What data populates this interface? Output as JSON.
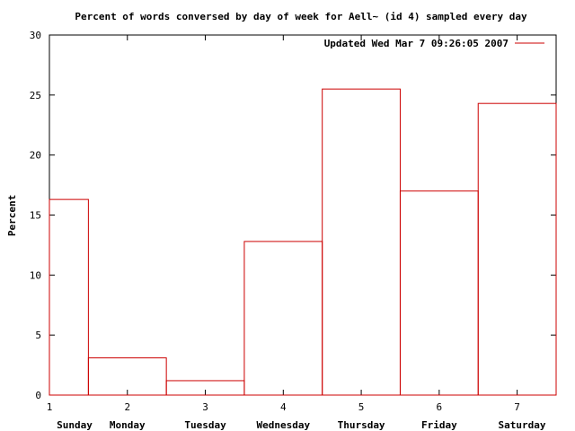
{
  "chart_data": {
    "type": "bar",
    "title": "Percent of words conversed by day of week for Aell~ (id 4) sampled every day",
    "xlabel": "",
    "ylabel": "Percent",
    "legend": {
      "label": "Updated Wed Mar  7 09:26:05 2007",
      "placement": "top-right"
    },
    "x_ticks": [
      "1",
      "2",
      "3",
      "4",
      "5",
      "6",
      "7"
    ],
    "categories": [
      "Sunday",
      "Monday",
      "Tuesday",
      "Wednesday",
      "Thursday",
      "Friday",
      "Saturday"
    ],
    "values": [
      16.3,
      3.1,
      1.2,
      12.8,
      25.5,
      17.0,
      24.3
    ],
    "ylim": [
      0,
      30
    ],
    "y_ticks": [
      0,
      5,
      10,
      15,
      20,
      25,
      30
    ],
    "grid": false,
    "style": "histogram-steps",
    "color": "#cc0000"
  }
}
